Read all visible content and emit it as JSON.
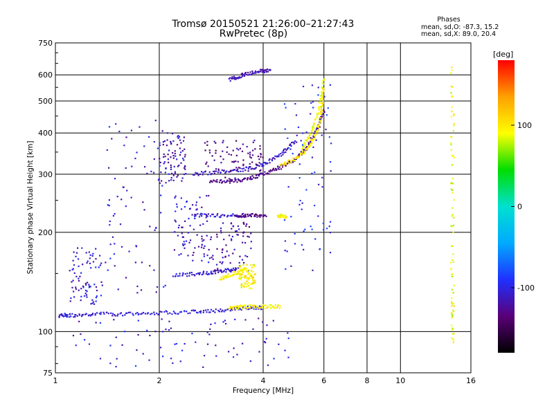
{
  "chart_data": {
    "type": "scatter",
    "title": "Tromsø 20150521 21:26:00–21:27:43",
    "subtitle": "RwPretec (8p)",
    "xlabel": "Frequency [MHz]",
    "ylabel": "Stationary phase Virtual Height [km]",
    "x_scale": "log",
    "y_scale": "log",
    "xlim": [
      1,
      16
    ],
    "ylim": [
      75,
      750
    ],
    "x_ticks": [
      1,
      2,
      4,
      6,
      8,
      10,
      16
    ],
    "y_ticks": [
      75,
      100,
      200,
      300,
      400,
      500,
      600,
      750
    ],
    "grid": true,
    "legend": {
      "title": "Phases",
      "line1": "mean, sd,O: -87.3, 15.2",
      "line2": "mean, sd,X: 89.0, 20.4",
      "placement": "top-right"
    },
    "colorbar": {
      "label": "[deg]",
      "ticks": [
        100,
        0,
        -100
      ],
      "range": [
        -180,
        180
      ],
      "colors": [
        "#000000",
        "#5a0078",
        "#2030ff",
        "#00aaff",
        "#00e0d0",
        "#00dd00",
        "#ffff00",
        "#ffa000",
        "#ff0000"
      ]
    },
    "series": [
      {
        "kind": "trace",
        "phase": -105,
        "x": [
          1.02,
          1.1,
          1.3,
          1.6,
          2.0,
          2.5,
          3.0,
          3.5,
          4.0
        ],
        "y": [
          112,
          112,
          113,
          113,
          114,
          115,
          116,
          118,
          118
        ]
      },
      {
        "kind": "trace",
        "phase": 95,
        "x": [
          3.2,
          3.5,
          4.0,
          4.5
        ],
        "y": [
          118,
          119,
          119,
          119
        ]
      },
      {
        "kind": "trace",
        "phase": -105,
        "x": [
          2.5,
          3.0,
          3.6
        ],
        "y": [
          225,
          225,
          225
        ]
      },
      {
        "kind": "trace",
        "phase": -130,
        "x": [
          3.3,
          3.7,
          4.1
        ],
        "y": [
          225,
          225,
          225
        ]
      },
      {
        "kind": "trace",
        "phase": 95,
        "x": [
          4.4,
          4.7
        ],
        "y": [
          225,
          223
        ]
      },
      {
        "kind": "trace",
        "phase": -130,
        "x": [
          2.8,
          3.2,
          3.6,
          4.0,
          4.5,
          5.0,
          5.4,
          5.8,
          6.0
        ],
        "y": [
          285,
          285,
          290,
          300,
          315,
          335,
          365,
          420,
          470
        ]
      },
      {
        "kind": "trace",
        "phase": -110,
        "x": [
          2.5,
          3.0,
          3.5,
          4.0,
          4.5,
          5.0
        ],
        "y": [
          300,
          305,
          310,
          320,
          345,
          380
        ]
      },
      {
        "kind": "trace",
        "phase": 100,
        "x": [
          4.5,
          5.0,
          5.4,
          5.7,
          5.9,
          6.0
        ],
        "y": [
          320,
          335,
          360,
          400,
          460,
          550
        ]
      },
      {
        "kind": "trace",
        "phase": 90,
        "x": [
          5.2,
          5.5,
          5.8,
          6.0
        ],
        "y": [
          360,
          400,
          470,
          590
        ]
      },
      {
        "kind": "trace",
        "phase": -105,
        "x": [
          2.2,
          2.6,
          3.0,
          3.4
        ],
        "y": [
          148,
          150,
          152,
          155
        ]
      },
      {
        "kind": "trace",
        "phase": 95,
        "x": [
          3.0,
          3.3,
          3.6
        ],
        "y": [
          145,
          150,
          155
        ]
      },
      {
        "kind": "trace",
        "phase": -115,
        "x": [
          3.2,
          3.5,
          3.9,
          4.2
        ],
        "y": [
          580,
          600,
          615,
          620
        ]
      },
      {
        "kind": "cloud",
        "phase": -105,
        "x": [
          1.1,
          1.4
        ],
        "y": [
          120,
          180
        ]
      },
      {
        "kind": "cloud",
        "phase": -105,
        "x": [
          1.4,
          2.1
        ],
        "y": [
          130,
          460
        ]
      },
      {
        "kind": "cloud",
        "phase": -110,
        "x": [
          2.2,
          2.8
        ],
        "y": [
          160,
          260
        ]
      },
      {
        "kind": "cloud",
        "phase": -115,
        "x": [
          2.0,
          2.4
        ],
        "y": [
          280,
          400
        ]
      },
      {
        "kind": "cloud",
        "phase": -130,
        "x": [
          2.7,
          4.0
        ],
        "y": [
          290,
          380
        ]
      },
      {
        "kind": "cloud",
        "phase": -120,
        "x": [
          2.8,
          3.7
        ],
        "y": [
          150,
          215
        ]
      },
      {
        "kind": "cloud",
        "phase": 95,
        "x": [
          3.4,
          3.8
        ],
        "y": [
          135,
          160
        ]
      },
      {
        "kind": "cloud",
        "phase": -95,
        "x": [
          4.6,
          6.3
        ],
        "y": [
          150,
          560
        ]
      },
      {
        "kind": "cloud",
        "phase": 90,
        "x": [
          14.0,
          14.3
        ],
        "y": [
          90,
          640
        ]
      },
      {
        "kind": "cloud",
        "phase": -105,
        "x": [
          1.1,
          4.8
        ],
        "y": [
          78,
          110
        ]
      }
    ]
  }
}
